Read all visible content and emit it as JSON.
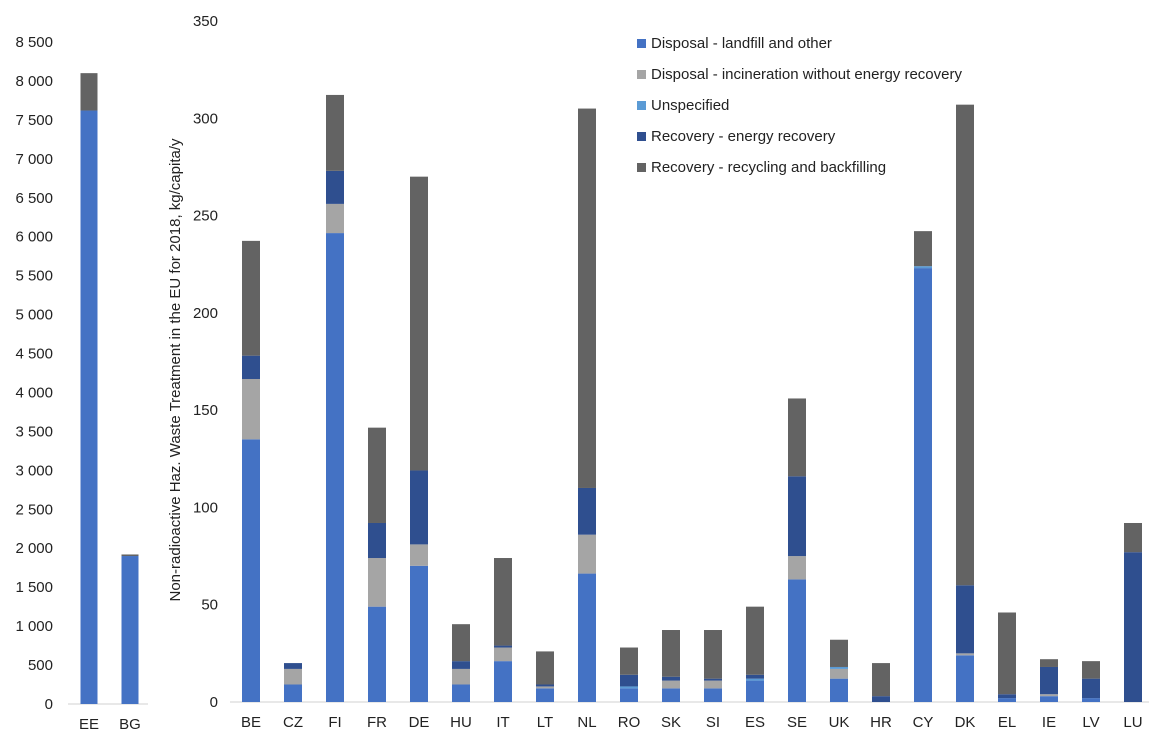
{
  "series_meta": [
    {
      "name": "Disposal - landfill and other",
      "color": "#4472C4"
    },
    {
      "name": "Disposal - incineration without energy recovery",
      "color": "#A5A5A5"
    },
    {
      "name": "Unspecified",
      "color": "#5B9BD5"
    },
    {
      "name": "Recovery - energy  recovery",
      "color": "#2F4F8F"
    },
    {
      "name": "Recovery - recycling and backfilling",
      "color": "#636363"
    }
  ],
  "chart_data": [
    {
      "type": "bar",
      "stacked": true,
      "categories": [
        "EE",
        "BG"
      ],
      "series": [
        {
          "name": "Disposal - landfill and other",
          "values": [
            7620,
            1900
          ]
        },
        {
          "name": "Disposal - incineration without energy recovery",
          "values": [
            0,
            0
          ]
        },
        {
          "name": "Unspecified",
          "values": [
            0,
            0
          ]
        },
        {
          "name": "Recovery - energy  recovery",
          "values": [
            0,
            0
          ]
        },
        {
          "name": "Recovery - recycling and backfilling",
          "values": [
            480,
            20
          ]
        }
      ],
      "ylim": [
        0,
        8500
      ],
      "yticks": [
        0,
        500,
        1000,
        1500,
        2000,
        2500,
        3000,
        3500,
        4000,
        4500,
        5000,
        5500,
        6000,
        6500,
        7000,
        7500,
        8000,
        8500
      ],
      "ytick_labels": [
        "0",
        "500",
        "1 000",
        "1 500",
        "2 000",
        "2 500",
        "3 000",
        "3 500",
        "4 000",
        "4 500",
        "5 000",
        "5 500",
        "6 000",
        "6 500",
        "7 000",
        "7 500",
        "8 000",
        "8 500"
      ],
      "grid": false
    },
    {
      "type": "bar",
      "stacked": true,
      "categories": [
        "BE",
        "CZ",
        "FI",
        "FR",
        "DE",
        "HU",
        "IT",
        "LT",
        "NL",
        "RO",
        "SK",
        "SI",
        "ES",
        "SE",
        "UK",
        "HR",
        "CY",
        "DK",
        "EL",
        "IE",
        "LV",
        "LU"
      ],
      "series": [
        {
          "name": "Disposal - landfill and other",
          "values": [
            135,
            9,
            241,
            49,
            70,
            9,
            21,
            7,
            66,
            7,
            7,
            7,
            11,
            63,
            12,
            0,
            223,
            24,
            2,
            3,
            2,
            0
          ]
        },
        {
          "name": "Disposal - incineration without energy recovery",
          "values": [
            31,
            8,
            15,
            25,
            11,
            8,
            7,
            1,
            20,
            0,
            4,
            4,
            0,
            12,
            5,
            0,
            0,
            1,
            0,
            1,
            0,
            0
          ]
        },
        {
          "name": "Unspecified",
          "values": [
            0,
            0,
            0,
            0,
            0,
            0,
            0,
            0,
            0,
            1,
            0,
            0,
            1,
            0,
            1,
            0,
            1,
            0,
            0,
            0,
            0,
            0
          ]
        },
        {
          "name": "Recovery - energy  recovery",
          "values": [
            12,
            3,
            17,
            18,
            38,
            4,
            1,
            1,
            24,
            6,
            2,
            1,
            2,
            41,
            0,
            3,
            0,
            35,
            2,
            14,
            10,
            77
          ]
        },
        {
          "name": "Recovery - recycling and backfilling",
          "values": [
            59,
            0,
            39,
            49,
            151,
            19,
            45,
            17,
            195,
            14,
            24,
            25,
            35,
            40,
            14,
            17,
            18,
            247,
            42,
            4,
            9,
            15
          ]
        }
      ],
      "ylabel": "Non-radioactive Haz. Waste Treatment in the EU for 2018, kg/capita/y",
      "ylim": [
        0,
        350
      ],
      "yticks": [
        0,
        50,
        100,
        150,
        200,
        250,
        300,
        350
      ],
      "ytick_labels": [
        "0",
        "50",
        "100",
        "150",
        "200",
        "250",
        "300",
        "350"
      ],
      "legend": "top-right",
      "grid": false
    }
  ]
}
